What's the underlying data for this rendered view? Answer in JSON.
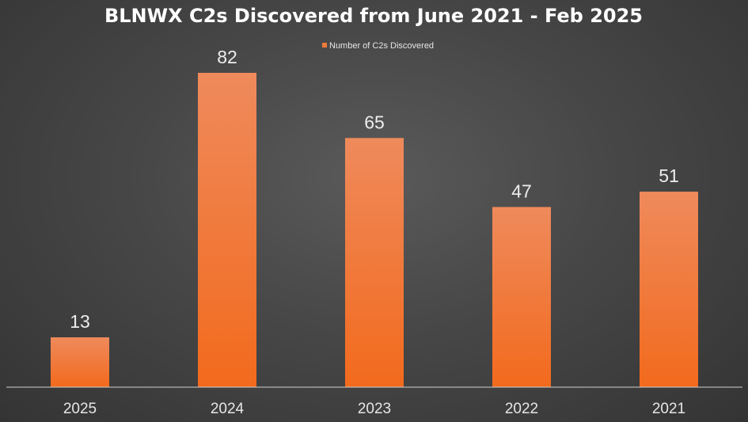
{
  "chart_data": {
    "type": "bar",
    "title": "BLNWX C2s Discovered from June 2021 - Feb 2025",
    "categories": [
      "2025",
      "2024",
      "2023",
      "2022",
      "2021"
    ],
    "series": [
      {
        "name": "Number of C2s Discovered",
        "values": [
          13,
          82,
          65,
          47,
          51
        ]
      }
    ],
    "xlabel": "",
    "ylabel": "",
    "ylim": [
      0,
      82
    ],
    "grid": false,
    "legend": "top-center",
    "data_labels": true,
    "colors": {
      "bar_top": "#ef8a5c",
      "bar_bottom": "#f26a1d",
      "legend_swatch": "#f0793a"
    }
  }
}
